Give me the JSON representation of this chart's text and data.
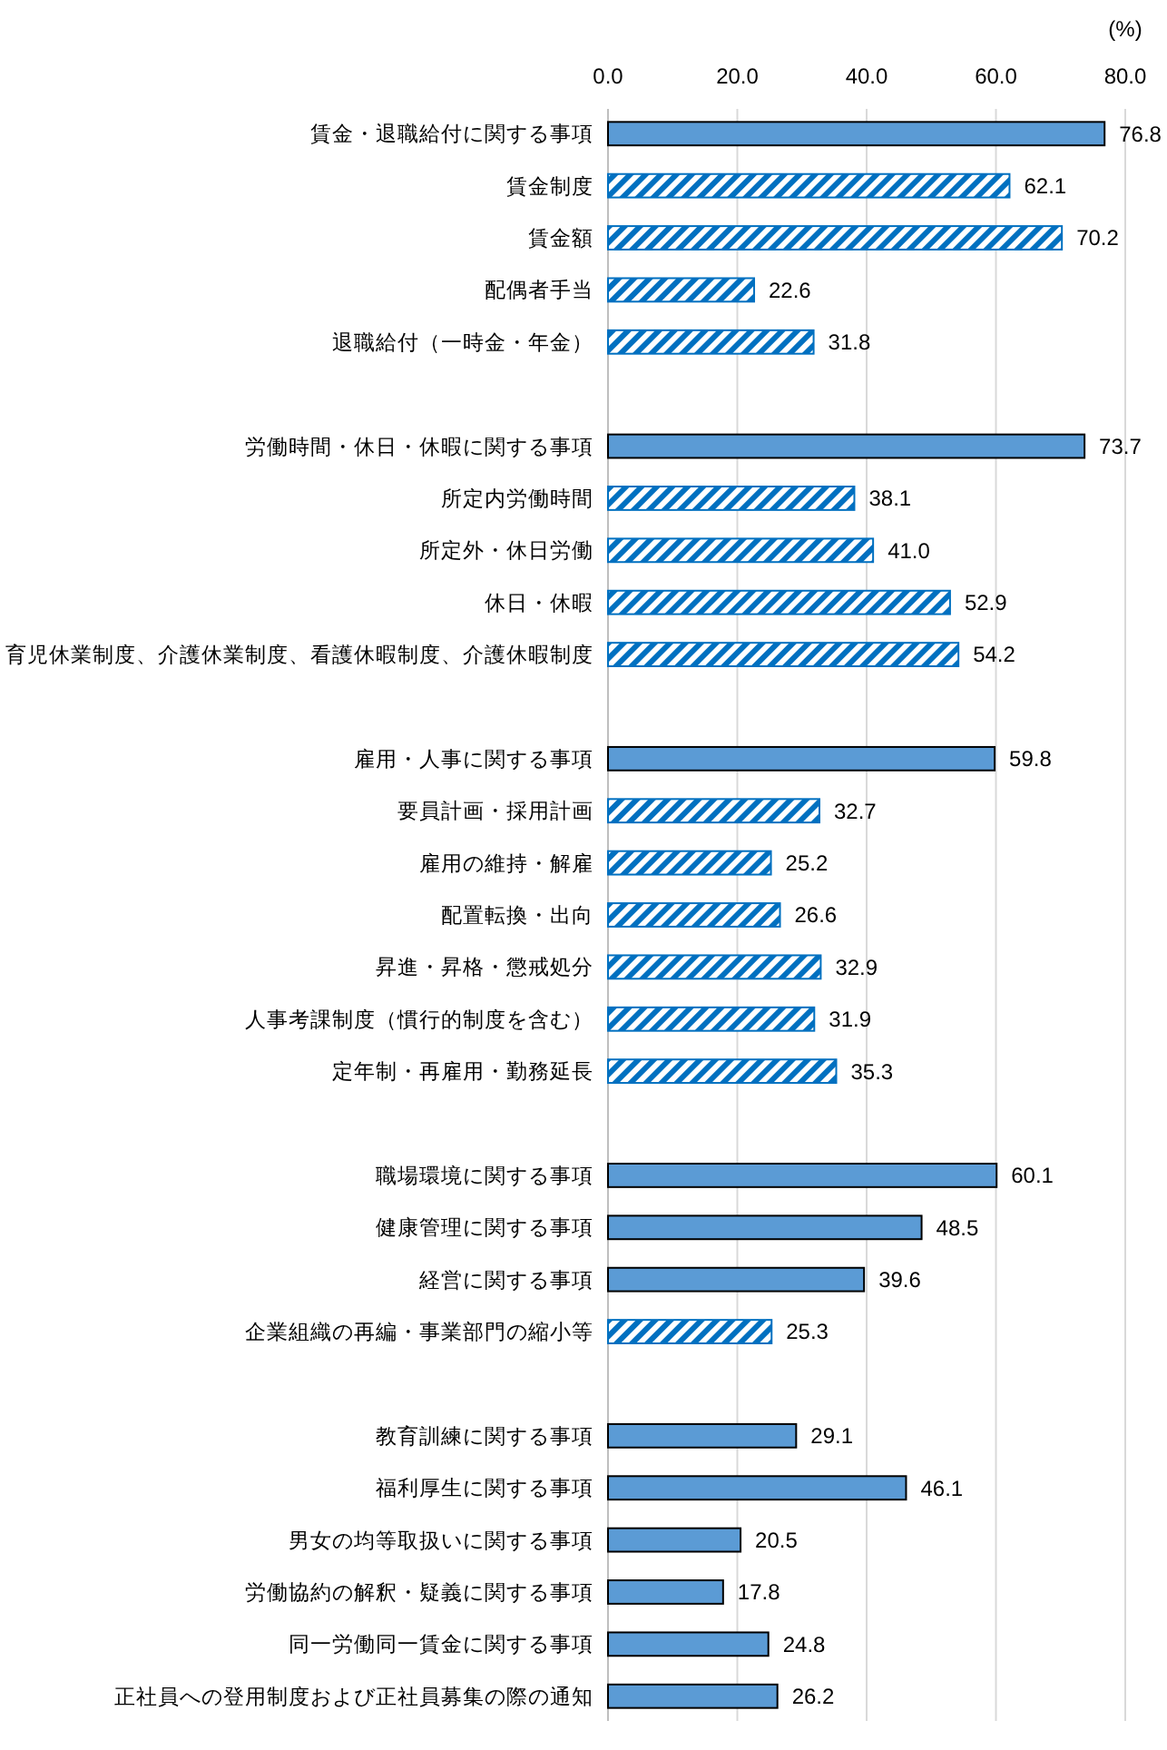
{
  "chart_data": {
    "type": "bar",
    "orientation": "horizontal",
    "stacked": true,
    "xlabel": "(%)",
    "categories": [
      "賃金・退職給付に関する事項",
      "賃金制度",
      "賃金額",
      "配偶者手当",
      "退職給付（一時金・年金）",
      null,
      "労働時間・休日・休暇に関する事項",
      "所定内労働時間",
      "所定外・休日労働",
      "休日・休暇",
      "育児休業制度、介護休業制度、看護休暇制度、介護休暇制度",
      null,
      "雇用・人事に関する事項",
      "要員計画・採用計画",
      "雇用の維持・解雇",
      "配置転換・出向",
      "昇進・昇格・懲戒処分",
      "人事考課制度（慣行的制度を含む）",
      "定年制・再雇用・勤務延長",
      null,
      "職場環境に関する事項",
      "健康管理に関する事項",
      "経営に関する事項",
      "企業組織の再編・事業部門の縮小等",
      null,
      "教育訓練に関する事項",
      "福利厚生に関する事項",
      "男女の均等取扱いに関する事項",
      "労働協約の解釈・疑義に関する事項",
      "同一労働同一賃金に関する事項",
      "正社員への登用制度および正社員募集の際の通知"
    ],
    "series": [
      {
        "color": "#5b9bd5",
        "values": [
          76.8,
          null,
          null,
          null,
          null,
          null,
          73.7,
          null,
          null,
          null,
          null,
          null,
          59.8,
          null,
          null,
          null,
          null,
          null,
          null,
          null,
          60.1,
          48.5,
          39.6,
          null,
          null,
          29.1,
          46.1,
          20.5,
          17.8,
          24.8,
          26.2
        ],
        "value_labels": [
          "76.8",
          null,
          null,
          null,
          null,
          null,
          "73.7",
          null,
          null,
          null,
          null,
          null,
          "59.8",
          null,
          null,
          null,
          null,
          null,
          null,
          null,
          "60.1",
          "48.5",
          "39.6",
          null,
          null,
          "29.1",
          "46.1",
          "20.5",
          "17.8",
          "24.8",
          "26.2"
        ]
      },
      {
        "color": "#0070c0",
        "values": [
          null,
          62.1,
          70.2,
          22.6,
          31.8,
          null,
          null,
          38.1,
          41.0,
          52.9,
          54.2,
          null,
          null,
          32.7,
          25.2,
          26.6,
          32.9,
          31.9,
          35.3,
          null,
          null,
          null,
          null,
          25.3,
          null,
          null,
          null,
          null,
          null,
          null,
          null
        ],
        "value_labels": [
          null,
          "62.1",
          "70.2",
          "22.6",
          "31.8",
          null,
          null,
          "38.1",
          "41.0",
          "52.9",
          "54.2",
          null,
          null,
          "32.7",
          "25.2",
          "26.6",
          "32.9",
          "31.9",
          "35.3",
          null,
          null,
          null,
          null,
          "25.3",
          null,
          null,
          null,
          null,
          null,
          null,
          null
        ]
      }
    ],
    "xlim": [
      0,
      80
    ],
    "xticks": [
      {
        "value": 0,
        "label": "0.0"
      },
      {
        "value": 20,
        "label": "20.0"
      },
      {
        "value": 40,
        "label": "40.0"
      },
      {
        "value": 60,
        "label": "60.0"
      },
      {
        "value": 80,
        "label": "80.0"
      }
    ],
    "grid": "x"
  }
}
